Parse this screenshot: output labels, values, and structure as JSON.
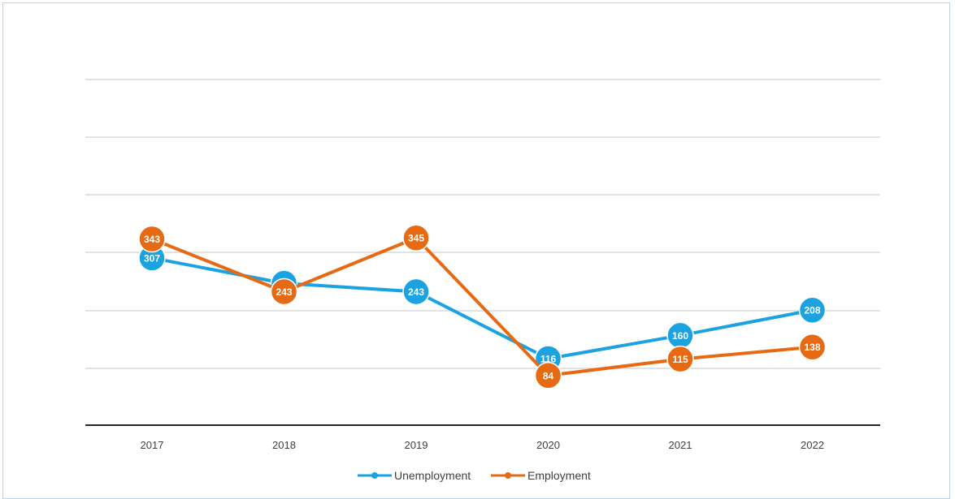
{
  "chart_data": {
    "type": "line",
    "categories": [
      "2017",
      "2018",
      "2019",
      "2020",
      "2021",
      "2022"
    ],
    "series": [
      {
        "name": "Unemployment",
        "color": "#1aa3e0",
        "values": [
          307,
          259,
          243,
          116,
          160,
          208
        ]
      },
      {
        "name": "Employment",
        "color": "#e66a14",
        "values": [
          343,
          243,
          345,
          84,
          115,
          138
        ]
      }
    ],
    "data_labels": true,
    "y_axis_labels_visible": false,
    "grid": true,
    "legend": "bottom-center"
  }
}
